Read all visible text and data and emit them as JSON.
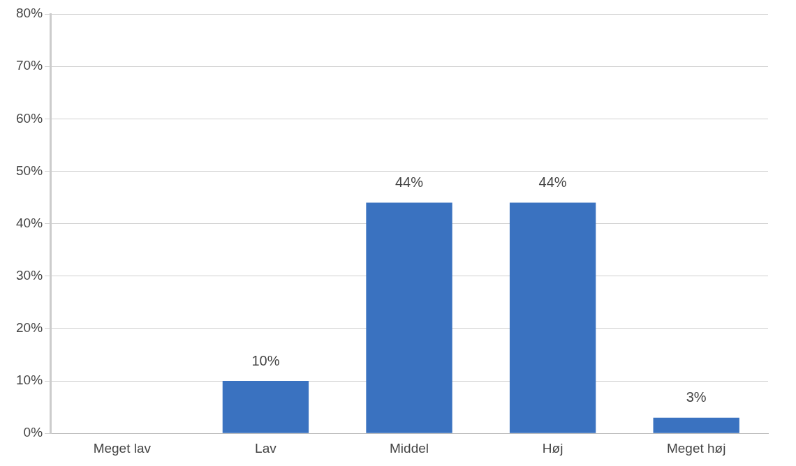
{
  "chart_data": {
    "type": "bar",
    "categories": [
      "Meget lav",
      "Lav",
      "Middel",
      "Høj",
      "Meget høj"
    ],
    "values": [
      0,
      10,
      44,
      44,
      3
    ],
    "value_labels": [
      null,
      "10%",
      "44%",
      "44%",
      "3%"
    ],
    "color": "#3a72c0",
    "ylim": [
      0,
      80
    ],
    "yticks": [
      {
        "value": 0,
        "label": "0%"
      },
      {
        "value": 10,
        "label": "10%"
      },
      {
        "value": 20,
        "label": "20%"
      },
      {
        "value": 30,
        "label": "30%"
      },
      {
        "value": 40,
        "label": "40%"
      },
      {
        "value": 50,
        "label": "50%"
      },
      {
        "value": 60,
        "label": "60%"
      },
      {
        "value": 70,
        "label": "70%"
      },
      {
        "value": 80,
        "label": "80%"
      }
    ],
    "grid": "y",
    "legend": false
  }
}
